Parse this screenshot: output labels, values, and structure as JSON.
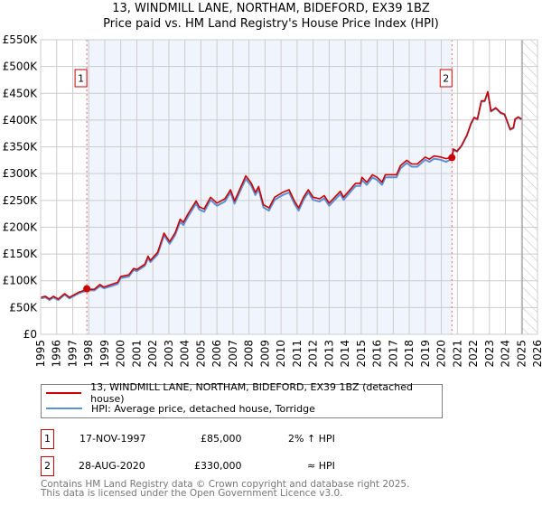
{
  "chart_data": {
    "type": "line",
    "title": "13, WINDMILL LANE, NORTHAM, BIDEFORD, EX39 1BZ",
    "subtitle": "Price paid vs. HM Land Registry's House Price Index (HPI)",
    "xlim": [
      1995,
      2026
    ],
    "ylim": [
      0,
      550000
    ],
    "grid": true,
    "y_ticks": [
      0,
      50000,
      100000,
      150000,
      200000,
      250000,
      300000,
      350000,
      400000,
      450000,
      500000,
      550000
    ],
    "y_tick_labels": [
      "£0",
      "£50K",
      "£100K",
      "£150K",
      "£200K",
      "£250K",
      "£300K",
      "£350K",
      "£400K",
      "£450K",
      "£500K",
      "£550K"
    ],
    "x_tick_labels": [
      "1995",
      "1996",
      "1997",
      "1998",
      "1999",
      "2000",
      "2001",
      "2002",
      "2003",
      "2004",
      "2005",
      "2006",
      "2007",
      "2008",
      "2009",
      "2010",
      "2011",
      "2012",
      "2013",
      "2014",
      "2015",
      "2016",
      "2017",
      "2018",
      "2019",
      "2020",
      "2021",
      "2022",
      "2023",
      "2024",
      "2025",
      "2026"
    ],
    "shaded_period": [
      1997.88,
      2020.66
    ],
    "forecast_hatch_from": 2025.05,
    "x": [
      1995.0,
      1995.3,
      1995.55,
      1995.8,
      1996.1,
      1996.5,
      1996.8,
      1997.4,
      1997.9,
      1998.35,
      1998.7,
      1998.95,
      1999.4,
      1999.8,
      2000.0,
      2000.5,
      2000.8,
      2001.0,
      2001.5,
      2001.7,
      2001.85,
      2002.3,
      2002.7,
      2003.05,
      2003.4,
      2003.7,
      2003.9,
      2004.2,
      2004.7,
      2004.9,
      2005.2,
      2005.6,
      2006.0,
      2006.5,
      2006.85,
      2007.1,
      2007.5,
      2007.8,
      2008.15,
      2008.4,
      2008.6,
      2008.9,
      2009.25,
      2009.6,
      2010.1,
      2010.5,
      2010.85,
      2011.1,
      2011.4,
      2011.7,
      2012.0,
      2012.4,
      2012.7,
      2013.0,
      2013.7,
      2013.9,
      2014.65,
      2014.95,
      2015.05,
      2015.35,
      2015.7,
      2016.0,
      2016.3,
      2016.5,
      2017.2,
      2017.45,
      2017.85,
      2018.15,
      2018.5,
      2019.0,
      2019.25,
      2019.55,
      2019.95,
      2020.3,
      2020.66,
      2020.75,
      2020.98,
      2021.25,
      2021.6,
      2021.85,
      2022.05,
      2022.25,
      2022.5,
      2022.7,
      2022.9,
      2023.1,
      2023.4,
      2023.7,
      2023.95,
      2024.3,
      2024.5,
      2024.6,
      2024.8,
      2025.0
    ],
    "series": [
      {
        "name": "13, WINDMILL LANE, NORTHAM, BIDEFORD, EX39 1BZ (detached house)",
        "color": "#cc0000",
        "values": [
          69,
          71,
          66,
          71,
          66,
          76,
          69,
          79,
          84,
          84,
          93,
          88,
          93,
          97,
          108,
          111,
          123,
          121,
          131,
          146,
          138,
          153,
          189,
          173,
          190,
          215,
          209,
          225,
          249,
          238,
          234,
          256,
          245,
          253,
          270,
          249,
          276,
          296,
          282,
          265,
          276,
          242,
          236,
          256,
          265,
          270,
          248,
          236,
          256,
          270,
          256,
          253,
          259,
          245,
          267,
          256,
          282,
          282,
          293,
          284,
          298,
          293,
          284,
          298,
          298,
          315,
          325,
          318,
          318,
          331,
          327,
          333,
          331,
          328,
          331,
          346,
          342,
          352,
          372,
          394,
          405,
          402,
          436,
          436,
          453,
          417,
          423,
          414,
          411,
          383,
          386,
          402,
          406,
          402
        ]
      },
      {
        "name": "HPI: Average price, detached house, Torridge",
        "color": "#5b8fd6",
        "values": [
          67,
          69,
          64,
          69,
          64,
          74,
          67,
          77,
          82,
          82,
          90,
          86,
          90,
          94,
          105,
          108,
          120,
          118,
          128,
          142,
          135,
          149,
          185,
          169,
          186,
          210,
          204,
          220,
          244,
          233,
          229,
          251,
          240,
          248,
          265,
          244,
          271,
          290,
          277,
          260,
          271,
          237,
          231,
          251,
          260,
          265,
          243,
          231,
          251,
          265,
          251,
          248,
          254,
          240,
          262,
          251,
          277,
          277,
          288,
          279,
          293,
          288,
          279,
          293,
          293,
          310,
          320,
          313,
          313,
          326,
          322,
          328,
          326,
          322,
          328,
          344,
          341,
          351,
          371,
          393,
          404,
          401,
          435,
          435,
          452,
          416,
          422,
          413,
          410,
          382,
          385,
          401,
          405,
          401
        ]
      }
    ],
    "sales": [
      {
        "label": "1",
        "x": 1997.88,
        "value": 85000
      },
      {
        "label": "2",
        "x": 2020.66,
        "value": 330000
      }
    ]
  },
  "legend": {
    "property": "13, WINDMILL LANE, NORTHAM, BIDEFORD, EX39 1BZ (detached house)",
    "hpi": "HPI: Average price, detached house, Torridge"
  },
  "transactions": [
    {
      "num": "1",
      "date": "17-NOV-1997",
      "price": "£85,000",
      "hpi": "2% ↑ HPI"
    },
    {
      "num": "2",
      "date": "28-AUG-2020",
      "price": "£330,000",
      "hpi": "≈ HPI"
    }
  ],
  "footer": {
    "line1": "Contains HM Land Registry data © Crown copyright and database right 2025.",
    "line2": "This data is licensed under the Open Government Licence v3.0."
  }
}
